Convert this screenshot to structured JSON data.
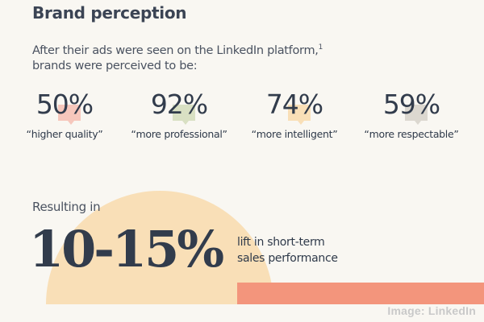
{
  "header": {
    "title": "Brand perception",
    "subtitle_line1": "After their ads were seen on the LinkedIn platform,",
    "subtitle_footnote": "1",
    "subtitle_line2": "brands were perceived to be:"
  },
  "stats": [
    {
      "value": "50%",
      "label": "“higher quality”",
      "color": "#f6c7bc",
      "icon": "speech-bubble-icon"
    },
    {
      "value": "92%",
      "label": "“more professional”",
      "color": "#d9e0c3",
      "icon": "speech-bubble-icon"
    },
    {
      "value": "74%",
      "label": "“more intelligent”",
      "color": "#f9dfb7",
      "icon": "speech-bubble-icon"
    },
    {
      "value": "59%",
      "label": "“more respectable”",
      "color": "#dcd8d0",
      "icon": "speech-bubble-icon"
    }
  ],
  "result": {
    "intro": "Resulting in",
    "value": "10-15%",
    "desc_line1": "lift in short-term",
    "desc_line2": "sales performance"
  },
  "colors": {
    "background": "#f9f7f2",
    "arc": "#f9dfb7",
    "bar": "#f3957c",
    "text": "#323c4c"
  },
  "credit": "Image: LinkedIn"
}
